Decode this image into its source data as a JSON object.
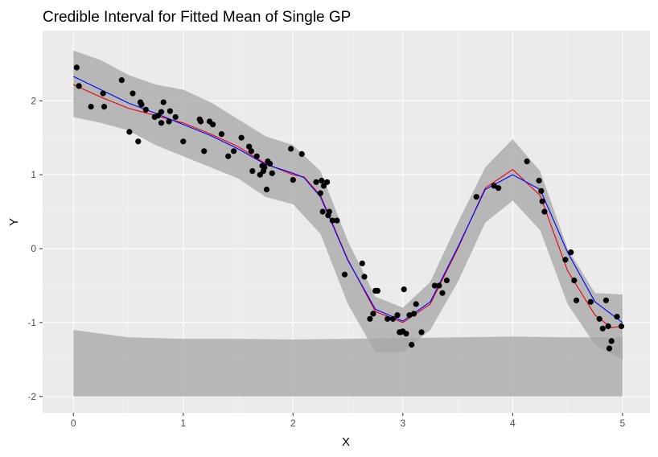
{
  "chart_data": {
    "type": "line",
    "title": "Credible Interval for Fitted Mean of Single GP",
    "xlabel": "X",
    "ylabel": "Y",
    "xlim": [
      -0.28,
      5.25
    ],
    "ylim": [
      -2.22,
      2.95
    ],
    "x_ticks": [
      0,
      1,
      2,
      3,
      4,
      5
    ],
    "x_tick_labels": [
      "0",
      "1",
      "2",
      "3",
      "4",
      "5"
    ],
    "y_ticks": [
      -2,
      -1,
      0,
      1,
      2
    ],
    "y_tick_labels": [
      "-2",
      "-1",
      "0",
      "1",
      "2"
    ],
    "grid": true,
    "legend": "none",
    "colors": {
      "panel_background": "#ebebeb",
      "grid_major": "#ffffff",
      "grid_minor": "#f5f5f5",
      "band": "#a6a6a6",
      "points": "#000000",
      "fit_red": "#e8000b",
      "fit_blue": "#0000ff"
    },
    "series": [
      {
        "kind": "ribbon",
        "x": [
          0,
          0.25,
          0.5,
          0.75,
          1,
          1.25,
          1.5,
          1.75,
          2,
          2.25,
          2.5,
          2.75,
          3,
          3.25,
          3.5,
          3.75,
          4,
          4.25,
          4.5,
          4.75,
          5
        ],
        "upper": [
          2.68,
          2.55,
          2.35,
          2.22,
          2.15,
          1.98,
          1.75,
          1.52,
          1.4,
          1.05,
          0.1,
          -0.65,
          -0.8,
          -0.45,
          0.35,
          1.1,
          1.48,
          1.05,
          0.0,
          -0.6,
          -0.62
        ],
        "lower": [
          1.78,
          1.7,
          1.6,
          1.4,
          1.25,
          1.1,
          0.95,
          0.7,
          0.6,
          0.2,
          -0.75,
          -1.4,
          -1.4,
          -1.1,
          -0.45,
          0.35,
          0.65,
          0.25,
          -0.75,
          -1.3,
          -1.5
        ]
      },
      {
        "kind": "ribbon",
        "x": [
          0,
          0.5,
          1,
          1.5,
          2,
          2.5,
          3,
          3.5,
          4,
          4.5,
          5
        ],
        "upper": [
          -1.1,
          -1.2,
          -1.22,
          -1.22,
          -1.23,
          -1.22,
          -1.21,
          -1.2,
          -1.19,
          -1.2,
          -1.2
        ],
        "lower": [
          -2,
          -2,
          -2,
          -2,
          -2,
          -2,
          -2,
          -2,
          -2,
          -2,
          -2
        ]
      },
      {
        "kind": "line",
        "color": "red",
        "x": [
          0,
          0.25,
          0.5,
          0.75,
          1,
          1.25,
          1.5,
          1.75,
          2,
          2.1,
          2.25,
          2.5,
          2.75,
          3,
          3.25,
          3.5,
          3.75,
          4,
          4.25,
          4.5,
          4.75,
          4.9,
          5
        ],
        "y": [
          2.22,
          2.05,
          1.9,
          1.8,
          1.7,
          1.55,
          1.38,
          1.15,
          1.0,
          0.97,
          0.72,
          -0.15,
          -0.85,
          -1.0,
          -0.75,
          0.0,
          0.82,
          1.07,
          0.72,
          -0.3,
          -0.9,
          -1.07,
          -1.05
        ]
      },
      {
        "kind": "line",
        "color": "blue",
        "x": [
          0,
          0.25,
          0.5,
          0.75,
          1,
          1.25,
          1.5,
          1.75,
          2,
          2.1,
          2.25,
          2.5,
          2.75,
          3,
          3.25,
          3.5,
          3.75,
          4,
          4.25,
          4.5,
          4.75,
          5
        ],
        "y": [
          2.33,
          2.15,
          1.97,
          1.83,
          1.68,
          1.53,
          1.35,
          1.14,
          1.02,
          0.96,
          0.7,
          -0.16,
          -0.82,
          -0.98,
          -0.72,
          0.02,
          0.8,
          1.0,
          0.8,
          -0.05,
          -0.72,
          -1.0
        ]
      },
      {
        "kind": "points",
        "x": [
          0.03,
          0.05,
          0.16,
          0.27,
          0.28,
          0.44,
          0.51,
          0.54,
          0.59,
          0.61,
          0.62,
          0.66,
          0.74,
          0.77,
          0.8,
          0.8,
          0.82,
          0.87,
          0.88,
          0.93,
          1.0,
          1.15,
          1.16,
          1.19,
          1.24,
          1.27,
          1.35,
          1.41,
          1.46,
          1.53,
          1.6,
          1.62,
          1.63,
          1.67,
          1.7,
          1.72,
          1.73,
          1.74,
          1.76,
          1.77,
          1.79,
          1.81,
          1.98,
          2.0,
          2.08,
          2.21,
          2.25,
          2.26,
          2.27,
          2.28,
          2.31,
          2.32,
          2.33,
          2.36,
          2.4,
          2.47,
          2.63,
          2.65,
          2.7,
          2.73,
          2.75,
          2.77,
          2.86,
          2.91,
          2.95,
          2.97,
          2.98,
          3.0,
          3.01,
          3.03,
          3.06,
          3.08,
          3.1,
          3.12,
          3.17,
          3.29,
          3.33,
          3.36,
          3.4,
          3.67,
          3.83,
          3.87,
          4.13,
          4.24,
          4.26,
          4.27,
          4.29,
          4.48,
          4.53,
          4.56,
          4.58,
          4.71,
          4.79,
          4.82,
          4.85,
          4.87,
          4.88,
          4.9,
          4.95,
          4.99
        ],
        "y": [
          2.45,
          2.2,
          1.92,
          2.1,
          1.92,
          2.28,
          1.58,
          2.1,
          1.45,
          1.98,
          1.95,
          1.88,
          1.78,
          1.8,
          1.7,
          1.85,
          1.98,
          1.72,
          1.86,
          1.78,
          1.45,
          1.75,
          1.72,
          1.32,
          1.72,
          1.68,
          1.55,
          1.25,
          1.32,
          1.5,
          1.38,
          1.32,
          1.05,
          1.25,
          1.0,
          1.12,
          1.05,
          1.1,
          0.8,
          1.18,
          1.15,
          1.02,
          1.35,
          0.93,
          1.28,
          0.9,
          0.75,
          0.92,
          0.5,
          0.85,
          0.9,
          0.45,
          0.5,
          0.38,
          0.38,
          -0.35,
          -0.2,
          -0.38,
          -0.95,
          -0.88,
          -0.57,
          -0.57,
          -0.95,
          -0.95,
          -0.9,
          -1.13,
          -1.13,
          -1.12,
          -0.55,
          -1.15,
          -0.9,
          -1.3,
          -0.88,
          -0.75,
          -1.13,
          -0.5,
          -0.5,
          -0.6,
          -0.43,
          0.7,
          0.85,
          0.82,
          1.18,
          0.92,
          0.78,
          0.64,
          0.5,
          -0.15,
          -0.05,
          -0.43,
          -0.7,
          -0.72,
          -0.95,
          -1.08,
          -0.7,
          -1.05,
          -1.35,
          -1.25,
          -0.92,
          -1.05
        ]
      }
    ]
  }
}
